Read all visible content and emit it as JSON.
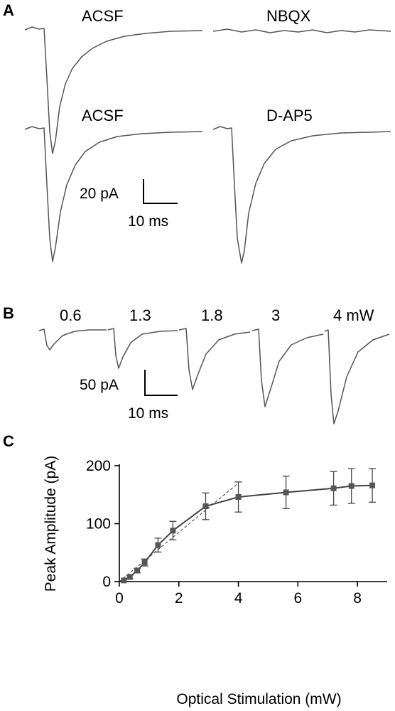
{
  "panels": {
    "a": {
      "letter": "A",
      "labels": {
        "acsf_top": "ACSF",
        "nbqx": "NBQX",
        "acsf_bottom": "ACSF",
        "dap5": "D-AP5"
      },
      "scalebar": {
        "current": "20 pA",
        "time": "10 ms"
      }
    },
    "b": {
      "letter": "B",
      "powers": [
        "0.6",
        "1.3",
        "1.8",
        "3",
        "4 mW"
      ],
      "scalebar": {
        "current": "50 pA",
        "time": "10 ms"
      }
    },
    "c": {
      "letter": "C"
    }
  },
  "chart_data": {
    "type": "line",
    "title": "",
    "xlabel": "Optical Stimulation (mW)",
    "ylabel": "Peak Amplitude (pA)",
    "xlim": [
      0,
      9
    ],
    "ylim": [
      0,
      200
    ],
    "xticks": [
      0,
      2,
      4,
      6,
      8
    ],
    "yticks": [
      0,
      100,
      200
    ],
    "series": [
      {
        "x": [
          0.15,
          0.35,
          0.6,
          0.85,
          1.3,
          1.8,
          2.9,
          4.0,
          5.6,
          7.2,
          7.8,
          8.5
        ],
        "y": [
          2,
          8,
          19,
          33,
          63,
          88,
          130,
          146,
          154,
          161,
          165,
          166
        ],
        "error": [
          1,
          3,
          4,
          6,
          12,
          16,
          23,
          26,
          28,
          29,
          30,
          29
        ]
      }
    ],
    "fit_line": {
      "x": [
        0,
        4.0
      ],
      "y": [
        0,
        170
      ],
      "style": "dashed"
    }
  }
}
